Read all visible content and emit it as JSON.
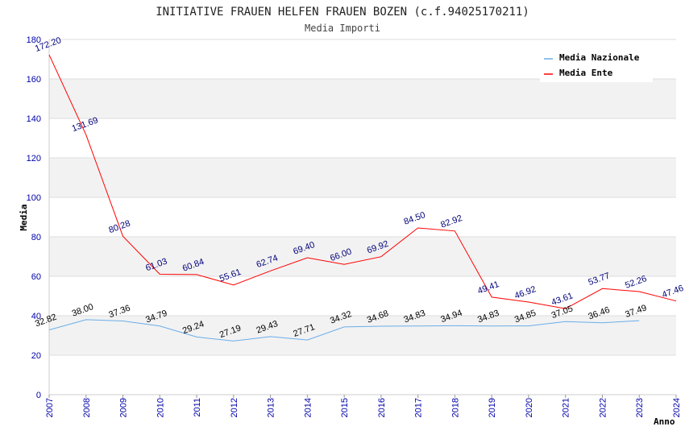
{
  "colors": {
    "nazionale": "#6aaee8",
    "ente": "#ff0000",
    "band": "#f2f2f2",
    "grid": "#dddddd",
    "tick": "#0000aa"
  },
  "chart_data": {
    "type": "line",
    "title": "INITIATIVE FRAUEN HELFEN FRAUEN BOZEN (c.f.94025170211)",
    "subtitle": "Media Importi",
    "xlabel": "Anno",
    "ylabel": "Media",
    "ylim": [
      0,
      180
    ],
    "yticks": [
      "0",
      "20",
      "40",
      "60",
      "80",
      "100",
      "120",
      "140",
      "160",
      "180"
    ],
    "categories": [
      "2007",
      "2008",
      "2009",
      "2010",
      "2011",
      "2012",
      "2013",
      "2014",
      "2015",
      "2016",
      "2017",
      "2018",
      "2019",
      "2020",
      "2021",
      "2022",
      "2023",
      "2024"
    ],
    "legend_position": "top-right",
    "series": [
      {
        "name": "Media Nazionale",
        "color": "#6aaee8",
        "values": [
          32.82,
          38.0,
          37.36,
          34.79,
          29.24,
          27.19,
          29.43,
          27.71,
          34.32,
          34.68,
          34.83,
          34.94,
          34.83,
          34.85,
          37.05,
          36.46,
          37.49,
          null
        ],
        "labels": [
          "32.82",
          "38.00",
          "37.36",
          "34.79",
          "29.24",
          "27.19",
          "29.43",
          "27.71",
          "34.32",
          "34.68",
          "34.83",
          "34.94",
          "34.83",
          "34.85",
          "37.05",
          "36.46",
          "37.49",
          ""
        ]
      },
      {
        "name": "Media Ente",
        "color": "#ff0000",
        "values": [
          172.2,
          131.69,
          80.28,
          61.03,
          60.84,
          55.61,
          62.74,
          69.4,
          66.0,
          69.92,
          84.5,
          82.92,
          49.41,
          46.92,
          43.61,
          53.77,
          52.26,
          47.46
        ],
        "labels": [
          "172.20",
          "131.69",
          "80.28",
          "61.03",
          "60.84",
          "55.61",
          "62.74",
          "69.40",
          "66.00",
          "69.92",
          "84.50",
          "82.92",
          "49.41",
          "46.92",
          "43.61",
          "53.77",
          "52.26",
          "47.46"
        ]
      }
    ]
  }
}
